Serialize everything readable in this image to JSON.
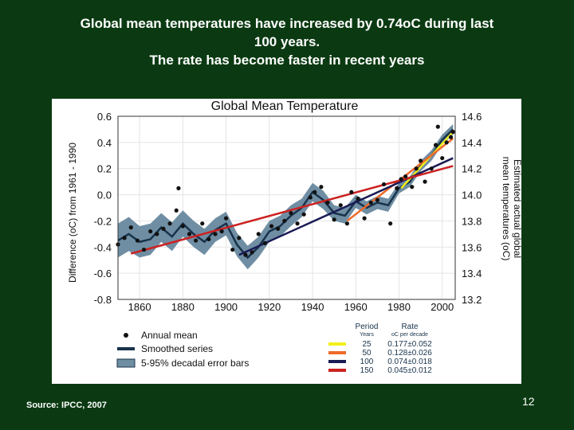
{
  "slide": {
    "title_lines": [
      "Global mean temperatures have increased by 0.74oC during last",
      "100 years.",
      "The rate has become faster in recent years"
    ],
    "source": "Source: IPCC, 2007",
    "page_number": "12"
  },
  "chart_data": {
    "type": "line",
    "title": "Global Mean Temperature",
    "ylabel": "Difference (oC) from 1961 - 1990",
    "y2label_lines": [
      "Estimated actual global",
      "mean temperatures (oC)"
    ],
    "xlim": [
      1850,
      2006
    ],
    "ylim": [
      -0.8,
      0.6
    ],
    "y2lim": [
      13.2,
      14.6
    ],
    "x_ticks": [
      1860,
      1880,
      1900,
      1920,
      1940,
      1960,
      1980,
      2000
    ],
    "y_ticks": [
      -0.8,
      -0.6,
      -0.4,
      -0.2,
      0.0,
      0.2,
      0.4,
      0.6
    ],
    "y_tick_labels": [
      "-0.8",
      "-0.6",
      "-0.4",
      "-0.2",
      "0.0",
      "0.2",
      "0.4",
      "0.6"
    ],
    "y2_ticks": [
      13.2,
      13.4,
      13.6,
      13.8,
      14.0,
      14.2,
      14.4,
      14.6
    ],
    "y2_tick_labels": [
      "13.2",
      "13.4",
      "13.6",
      "13.8",
      "14.0",
      "14.2",
      "14.4",
      "14.6"
    ],
    "grid": true,
    "colors": {
      "band": "#6f8ea3",
      "smooth": "#17324a",
      "dot": "#111111",
      "grid": "#e4e4e4"
    },
    "smoothed_series": {
      "name": "Smoothed series",
      "x": [
        1850,
        1855,
        1860,
        1865,
        1870,
        1875,
        1880,
        1885,
        1890,
        1895,
        1900,
        1905,
        1910,
        1915,
        1920,
        1925,
        1930,
        1935,
        1940,
        1945,
        1950,
        1955,
        1960,
        1965,
        1970,
        1975,
        1980,
        1985,
        1990,
        1995,
        2000,
        2005
      ],
      "y": [
        -0.35,
        -0.3,
        -0.36,
        -0.34,
        -0.25,
        -0.32,
        -0.22,
        -0.3,
        -0.36,
        -0.27,
        -0.22,
        -0.38,
        -0.48,
        -0.4,
        -0.28,
        -0.24,
        -0.16,
        -0.1,
        0.02,
        -0.04,
        -0.14,
        -0.16,
        -0.05,
        -0.1,
        -0.06,
        -0.08,
        0.05,
        0.1,
        0.22,
        0.3,
        0.42,
        0.5
      ],
      "error_halfwidth": [
        0.13,
        0.13,
        0.12,
        0.12,
        0.11,
        0.11,
        0.1,
        0.1,
        0.1,
        0.09,
        0.09,
        0.09,
        0.09,
        0.08,
        0.08,
        0.08,
        0.08,
        0.07,
        0.07,
        0.07,
        0.06,
        0.06,
        0.05,
        0.05,
        0.05,
        0.05,
        0.04,
        0.04,
        0.04,
        0.04,
        0.04,
        0.04
      ]
    },
    "annual_mean": {
      "name": "Annual mean",
      "x": [
        1850,
        1853,
        1856,
        1859,
        1862,
        1865,
        1868,
        1871,
        1874,
        1877,
        1878,
        1880,
        1883,
        1886,
        1889,
        1892,
        1895,
        1898,
        1900,
        1903,
        1906,
        1909,
        1912,
        1915,
        1918,
        1921,
        1924,
        1927,
        1930,
        1933,
        1936,
        1939,
        1941,
        1944,
        1947,
        1950,
        1953,
        1956,
        1958,
        1961,
        1964,
        1967,
        1970,
        1973,
        1976,
        1979,
        1981,
        1983,
        1986,
        1988,
        1990,
        1992,
        1995,
        1997,
        1998,
        2000,
        2002,
        2004,
        2005
      ],
      "y": [
        -0.38,
        -0.33,
        -0.25,
        -0.35,
        -0.42,
        -0.28,
        -0.3,
        -0.26,
        -0.22,
        -0.12,
        0.05,
        -0.24,
        -0.3,
        -0.35,
        -0.22,
        -0.34,
        -0.3,
        -0.28,
        -0.18,
        -0.42,
        -0.33,
        -0.46,
        -0.44,
        -0.3,
        -0.37,
        -0.24,
        -0.26,
        -0.2,
        -0.14,
        -0.22,
        -0.15,
        -0.02,
        0.02,
        0.06,
        -0.06,
        -0.19,
        -0.08,
        -0.22,
        0.02,
        -0.03,
        -0.18,
        -0.06,
        -0.04,
        0.08,
        -0.22,
        0.05,
        0.12,
        0.14,
        0.06,
        0.2,
        0.26,
        0.1,
        0.2,
        0.38,
        0.52,
        0.28,
        0.4,
        0.44,
        0.48
      ]
    },
    "trend_lines": [
      {
        "period_years": "25",
        "rate": "0.177±0.052",
        "color": "#f2f01c",
        "x": [
          1981,
          2005
        ],
        "y": [
          0.05,
          0.48
        ]
      },
      {
        "period_years": "50",
        "rate": "0.128±0.026",
        "color": "#ef6a2a",
        "x": [
          1956,
          2005
        ],
        "y": [
          -0.2,
          0.43
        ]
      },
      {
        "period_years": "100",
        "rate": "0.074±0.018",
        "color": "#1a1a55",
        "x": [
          1906,
          2005
        ],
        "y": [
          -0.46,
          0.28
        ]
      },
      {
        "period_years": "150",
        "rate": "0.045±0.012",
        "color": "#cc2222",
        "x": [
          1856,
          2005
        ],
        "y": [
          -0.45,
          0.22
        ]
      }
    ],
    "legend": {
      "placement": "bottom-left",
      "items": [
        {
          "label": "Annual mean",
          "kind": "dot"
        },
        {
          "label": "Smoothed series",
          "kind": "line"
        },
        {
          "label": "5-95% decadal error bars",
          "kind": "band"
        }
      ]
    },
    "rate_table": {
      "placement": "bottom-right",
      "col_period": "Period",
      "col_period_sub": "Years",
      "col_rate": "Rate",
      "col_rate_sub": "oC  per decade"
    }
  }
}
